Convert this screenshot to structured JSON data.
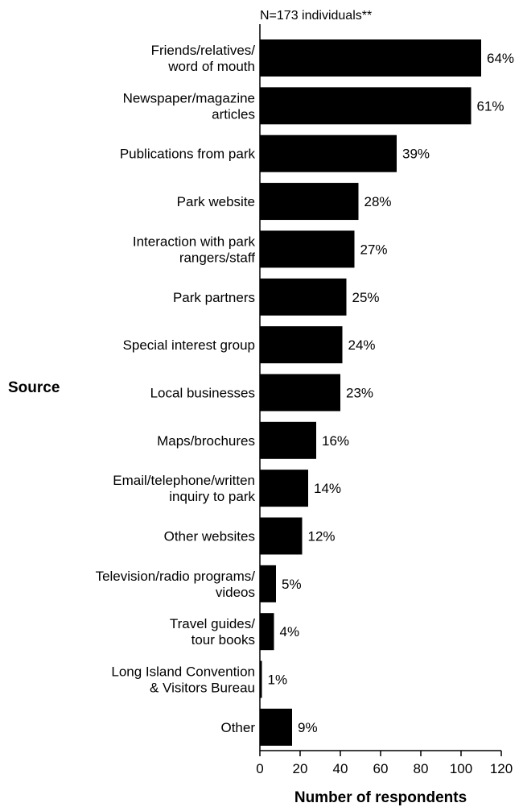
{
  "chart_data": {
    "type": "bar",
    "orientation": "horizontal",
    "note": "N=173 individuals**",
    "ylabel": "Source",
    "xlabel": "Number of respondents",
    "xlim": [
      0,
      120
    ],
    "xticks": [
      "0",
      "20",
      "40",
      "60",
      "80",
      "100",
      "120"
    ],
    "grid": false,
    "bar_color": "#000000",
    "categories": [
      [
        "Friends/relatives/",
        "word of mouth"
      ],
      [
        "Newspaper/magazine",
        "articles"
      ],
      [
        "Publications from park"
      ],
      [
        "Park website"
      ],
      [
        "Interaction with park",
        "rangers/staff"
      ],
      [
        "Park partners"
      ],
      [
        "Special interest group"
      ],
      [
        "Local businesses"
      ],
      [
        "Maps/brochures"
      ],
      [
        "Email/telephone/written",
        "inquiry to park"
      ],
      [
        "Other websites"
      ],
      [
        "Television/radio programs/",
        "videos"
      ],
      [
        "Travel guides/",
        "tour books"
      ],
      [
        "Long Island Convention",
        "& Visitors Bureau"
      ],
      [
        "Other"
      ]
    ],
    "values": [
      110,
      105,
      68,
      49,
      47,
      43,
      41,
      40,
      28,
      24,
      21,
      8,
      7,
      1,
      16
    ],
    "value_labels": [
      "64%",
      "61%",
      "39%",
      "28%",
      "27%",
      "25%",
      "24%",
      "23%",
      "16%",
      "14%",
      "12%",
      "5%",
      "4%",
      "1%",
      "9%"
    ]
  }
}
